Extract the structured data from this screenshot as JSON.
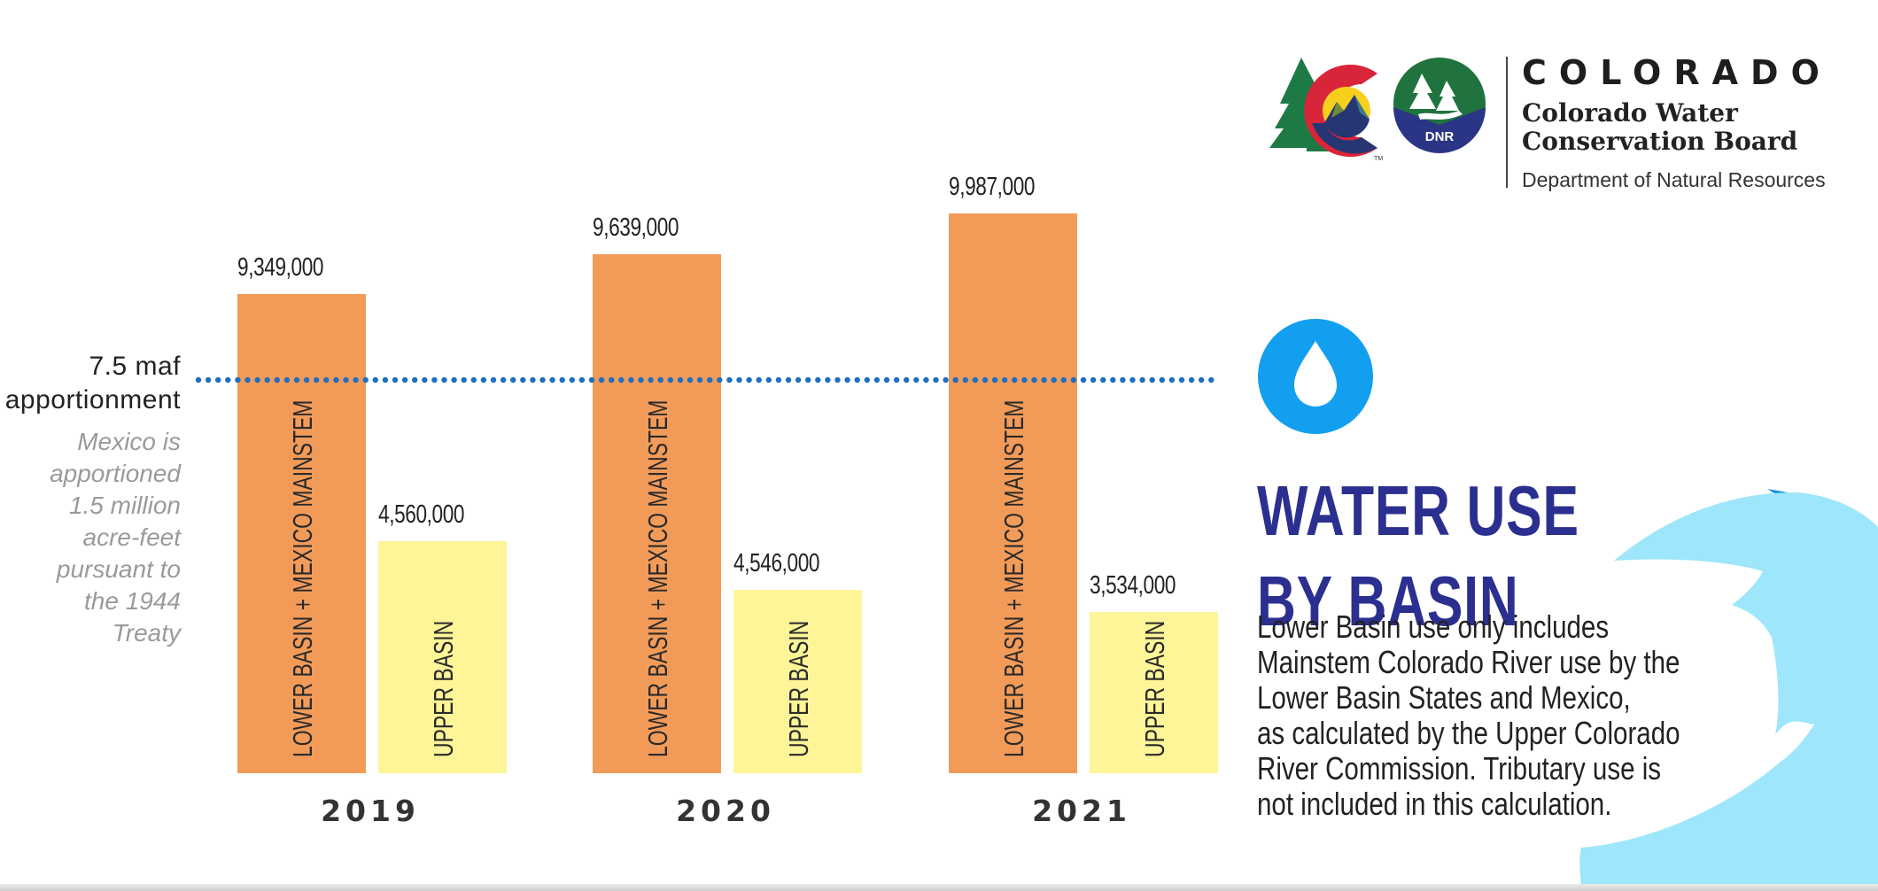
{
  "header": {
    "logo_state": "COLORADO",
    "logo_org_line1": "Colorado Water",
    "logo_org_line2": "Conservation Board",
    "logo_dept": "Department of Natural Resources",
    "logo_badge": "DNR",
    "logo_tm": "TM"
  },
  "reference_line": {
    "label_line1": "7.5 maf",
    "label_line2": "apportionment",
    "note_lines": [
      "Mexico is",
      "apportioned",
      "1.5 million",
      "acre-feet",
      "pursuant to",
      "the 1944",
      "Treaty"
    ]
  },
  "panel": {
    "icon": "water-drop-icon",
    "title_line1": "WATER USE",
    "title_line2": "BY BASIN",
    "description_lines": [
      "Lower Basin use only includes",
      "Mainstem Colorado River use by the",
      "Lower Basin States and Mexico,",
      "as calculated by the Upper Colorado",
      "River Commission. Tributary use is",
      "not included in this calculation."
    ]
  },
  "colors": {
    "lower_basin": "#f29b59",
    "upper_basin": "#fdf597",
    "reference_line": "#1f6fc0",
    "title": "#2b2f8f",
    "drop_circle": "#139ff0",
    "wave_light": "#9ee6fb",
    "wave_dark": "#0e94e8"
  },
  "chart_data": {
    "type": "bar",
    "title": "WATER USE BY BASIN",
    "categories": [
      "2019",
      "2020",
      "2021"
    ],
    "series": [
      {
        "name": "LOWER BASIN + MEXICO MAINSTEM",
        "values": [
          9349000,
          9639000,
          9987000
        ],
        "labels": [
          "9,349,000",
          "9,639,000",
          "9,987,000"
        ]
      },
      {
        "name": "UPPER BASIN",
        "values": [
          4560000,
          4546000,
          3534000
        ],
        "labels": [
          "4,560,000",
          "4,546,000",
          "3,534,000"
        ]
      }
    ],
    "reference_lines": [
      {
        "value": 7500000,
        "label": "7.5 maf apportionment",
        "style": "dotted"
      }
    ],
    "units": "acre-feet",
    "xlabel": "",
    "ylabel": "",
    "grid": false,
    "legend": "none (series names printed inside bars)"
  }
}
